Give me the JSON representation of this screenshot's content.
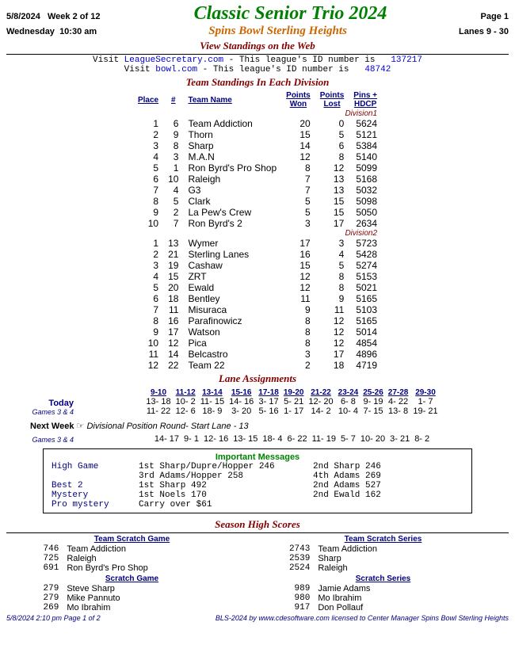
{
  "header": {
    "date": "5/8/2024",
    "week": "Week 2 of 12",
    "title": "Classic Senior Trio 2024",
    "page": "Page 1",
    "day": "Wednesday",
    "time": "10:30 am",
    "center": "Spins Bowl Sterling Heights",
    "lanes": "Lanes 9 - 30",
    "view_web": "View Standings on the Web"
  },
  "links": {
    "l1_pre": "Visit ",
    "l1_url": "LeagueSecretary.com",
    "l1_mid": " - This league's ID number is ",
    "l1_id": "137217",
    "l2_pre": "Visit ",
    "l2_url": "bowl.com",
    "l2_mid": " - This league's ID number is ",
    "l2_id": "48742"
  },
  "standings": {
    "title": "Team Standings In Each Division",
    "cols": {
      "place": "Place",
      "num": "#",
      "name": "Team Name",
      "won": "Points\nWon",
      "lost": "Points\nLost",
      "pins": "Pins +\nHDCP"
    },
    "div1_label": "Division1",
    "div2_label": "Division2",
    "div1": [
      {
        "place": "1",
        "num": "6",
        "name": "Team Addiction",
        "won": "20",
        "lost": "0",
        "pins": "5624"
      },
      {
        "place": "2",
        "num": "9",
        "name": "Thorn",
        "won": "15",
        "lost": "5",
        "pins": "5121"
      },
      {
        "place": "3",
        "num": "8",
        "name": "Sharp",
        "won": "14",
        "lost": "6",
        "pins": "5384"
      },
      {
        "place": "4",
        "num": "3",
        "name": "M.A.N",
        "won": "12",
        "lost": "8",
        "pins": "5140"
      },
      {
        "place": "5",
        "num": "1",
        "name": "Ron Byrd's Pro Shop",
        "won": "8",
        "lost": "12",
        "pins": "5099"
      },
      {
        "place": "6",
        "num": "10",
        "name": "Raleigh",
        "won": "7",
        "lost": "13",
        "pins": "5168"
      },
      {
        "place": "7",
        "num": "4",
        "name": "G3",
        "won": "7",
        "lost": "13",
        "pins": "5032"
      },
      {
        "place": "8",
        "num": "5",
        "name": "Clark",
        "won": "5",
        "lost": "15",
        "pins": "5098"
      },
      {
        "place": "9",
        "num": "2",
        "name": "La Pew's Crew",
        "won": "5",
        "lost": "15",
        "pins": "5050"
      },
      {
        "place": "10",
        "num": "7",
        "name": "Ron Byrd's 2",
        "won": "3",
        "lost": "17",
        "pins": "2634"
      }
    ],
    "div2": [
      {
        "place": "1",
        "num": "13",
        "name": "Wymer",
        "won": "17",
        "lost": "3",
        "pins": "5723"
      },
      {
        "place": "2",
        "num": "21",
        "name": "Sterling Lanes",
        "won": "16",
        "lost": "4",
        "pins": "5428"
      },
      {
        "place": "3",
        "num": "19",
        "name": "Cashaw",
        "won": "15",
        "lost": "5",
        "pins": "5274"
      },
      {
        "place": "4",
        "num": "15",
        "name": "ZRT",
        "won": "12",
        "lost": "8",
        "pins": "5153"
      },
      {
        "place": "5",
        "num": "20",
        "name": "Ewald",
        "won": "12",
        "lost": "8",
        "pins": "5021"
      },
      {
        "place": "6",
        "num": "18",
        "name": "Bentley",
        "won": "11",
        "lost": "9",
        "pins": "5165"
      },
      {
        "place": "7",
        "num": "11",
        "name": "Misuraca",
        "won": "9",
        "lost": "11",
        "pins": "5103"
      },
      {
        "place": "8",
        "num": "16",
        "name": "Parafinowicz",
        "won": "8",
        "lost": "12",
        "pins": "5165"
      },
      {
        "place": "9",
        "num": "17",
        "name": "Watson",
        "won": "8",
        "lost": "12",
        "pins": "5014"
      },
      {
        "place": "10",
        "num": "12",
        "name": "Pica",
        "won": "8",
        "lost": "12",
        "pins": "4854"
      },
      {
        "place": "11",
        "num": "14",
        "name": "Belcastro",
        "won": "3",
        "lost": "17",
        "pins": "4896"
      },
      {
        "place": "12",
        "num": "22",
        "name": "Team 22",
        "won": "2",
        "lost": "18",
        "pins": "4719"
      }
    ]
  },
  "lanes": {
    "title": "Lane Assignments",
    "pairs": [
      "9-10",
      "11-12",
      "13-14",
      "15-16",
      "17-18",
      "19-20",
      "21-22",
      "23-24",
      "25-26",
      "27-28",
      "29-30"
    ],
    "today_label": "Today",
    "games_label": "Games 3 & 4",
    "today_r1": [
      "13- 18",
      "10- 2",
      "11- 15",
      "14- 16",
      "3- 17",
      "5- 21",
      "12- 20",
      "6- 8",
      "9- 19",
      "4- 22",
      "1- 7"
    ],
    "today_r2": [
      "11- 22",
      "12- 6",
      "18- 9",
      "3- 20",
      "5- 16",
      "1- 17",
      "14- 2",
      "10- 4",
      "7- 15",
      "13- 8",
      "19- 21"
    ],
    "next_label": "Next Week",
    "next_desc": "Divisional Position Round- Start Lane - 13",
    "next_r1": [
      "14- 17",
      "9- 1",
      "12- 16",
      "13- 15",
      "18- 4",
      "6- 22",
      "11- 19",
      "5- 7",
      "10- 20",
      "3- 21",
      "8- 2"
    ]
  },
  "important": {
    "title": "Important Messages",
    "rows": [
      {
        "lbl": "High Game",
        "c1": "1st Sharp/Dupre/Hopper 246",
        "c2": "2nd Sharp 246"
      },
      {
        "lbl": "",
        "c1": "3rd Adams/Hopper 258",
        "c2": "4th Adams 269"
      },
      {
        "lbl": "Best 2",
        "c1": "1st Sharp 492",
        "c2": "2nd Adams 527"
      },
      {
        "lbl": "Mystery",
        "c1": "1st Noels 170",
        "c2": "2nd Ewald 162"
      },
      {
        "lbl": "Pro mystery",
        "c1": "Carry over $61",
        "c2": ""
      }
    ]
  },
  "season": {
    "title": "Season High Scores",
    "blocks": [
      {
        "hdr": "Team Scratch Game",
        "rows": [
          {
            "n": "746",
            "nm": "Team Addiction"
          },
          {
            "n": "725",
            "nm": "Raleigh"
          },
          {
            "n": "691",
            "nm": "Ron Byrd's Pro Shop"
          }
        ]
      },
      {
        "hdr": "Team Scratch Series",
        "rows": [
          {
            "n": "2743",
            "nm": "Team Addiction"
          },
          {
            "n": "2539",
            "nm": "Sharp"
          },
          {
            "n": "2524",
            "nm": "Raleigh"
          }
        ]
      },
      {
        "hdr": "Scratch Game",
        "rows": [
          {
            "n": "279",
            "nm": "Steve Sharp"
          },
          {
            "n": "279",
            "nm": "Mike Pannuto"
          },
          {
            "n": "269",
            "nm": "Mo Ibrahim"
          }
        ]
      },
      {
        "hdr": "Scratch Series",
        "rows": [
          {
            "n": "989",
            "nm": "Jamie Adams"
          },
          {
            "n": "980",
            "nm": "Mo Ibrahim"
          },
          {
            "n": "917",
            "nm": "Don Pollauf"
          }
        ]
      }
    ]
  },
  "footer": {
    "left": "5/8/2024  2:10 pm  Page 1 of 2",
    "right": "BLS-2024 by www.cdesoftware.com licensed to Center Manager  Spins Bowl Sterling Heights"
  }
}
